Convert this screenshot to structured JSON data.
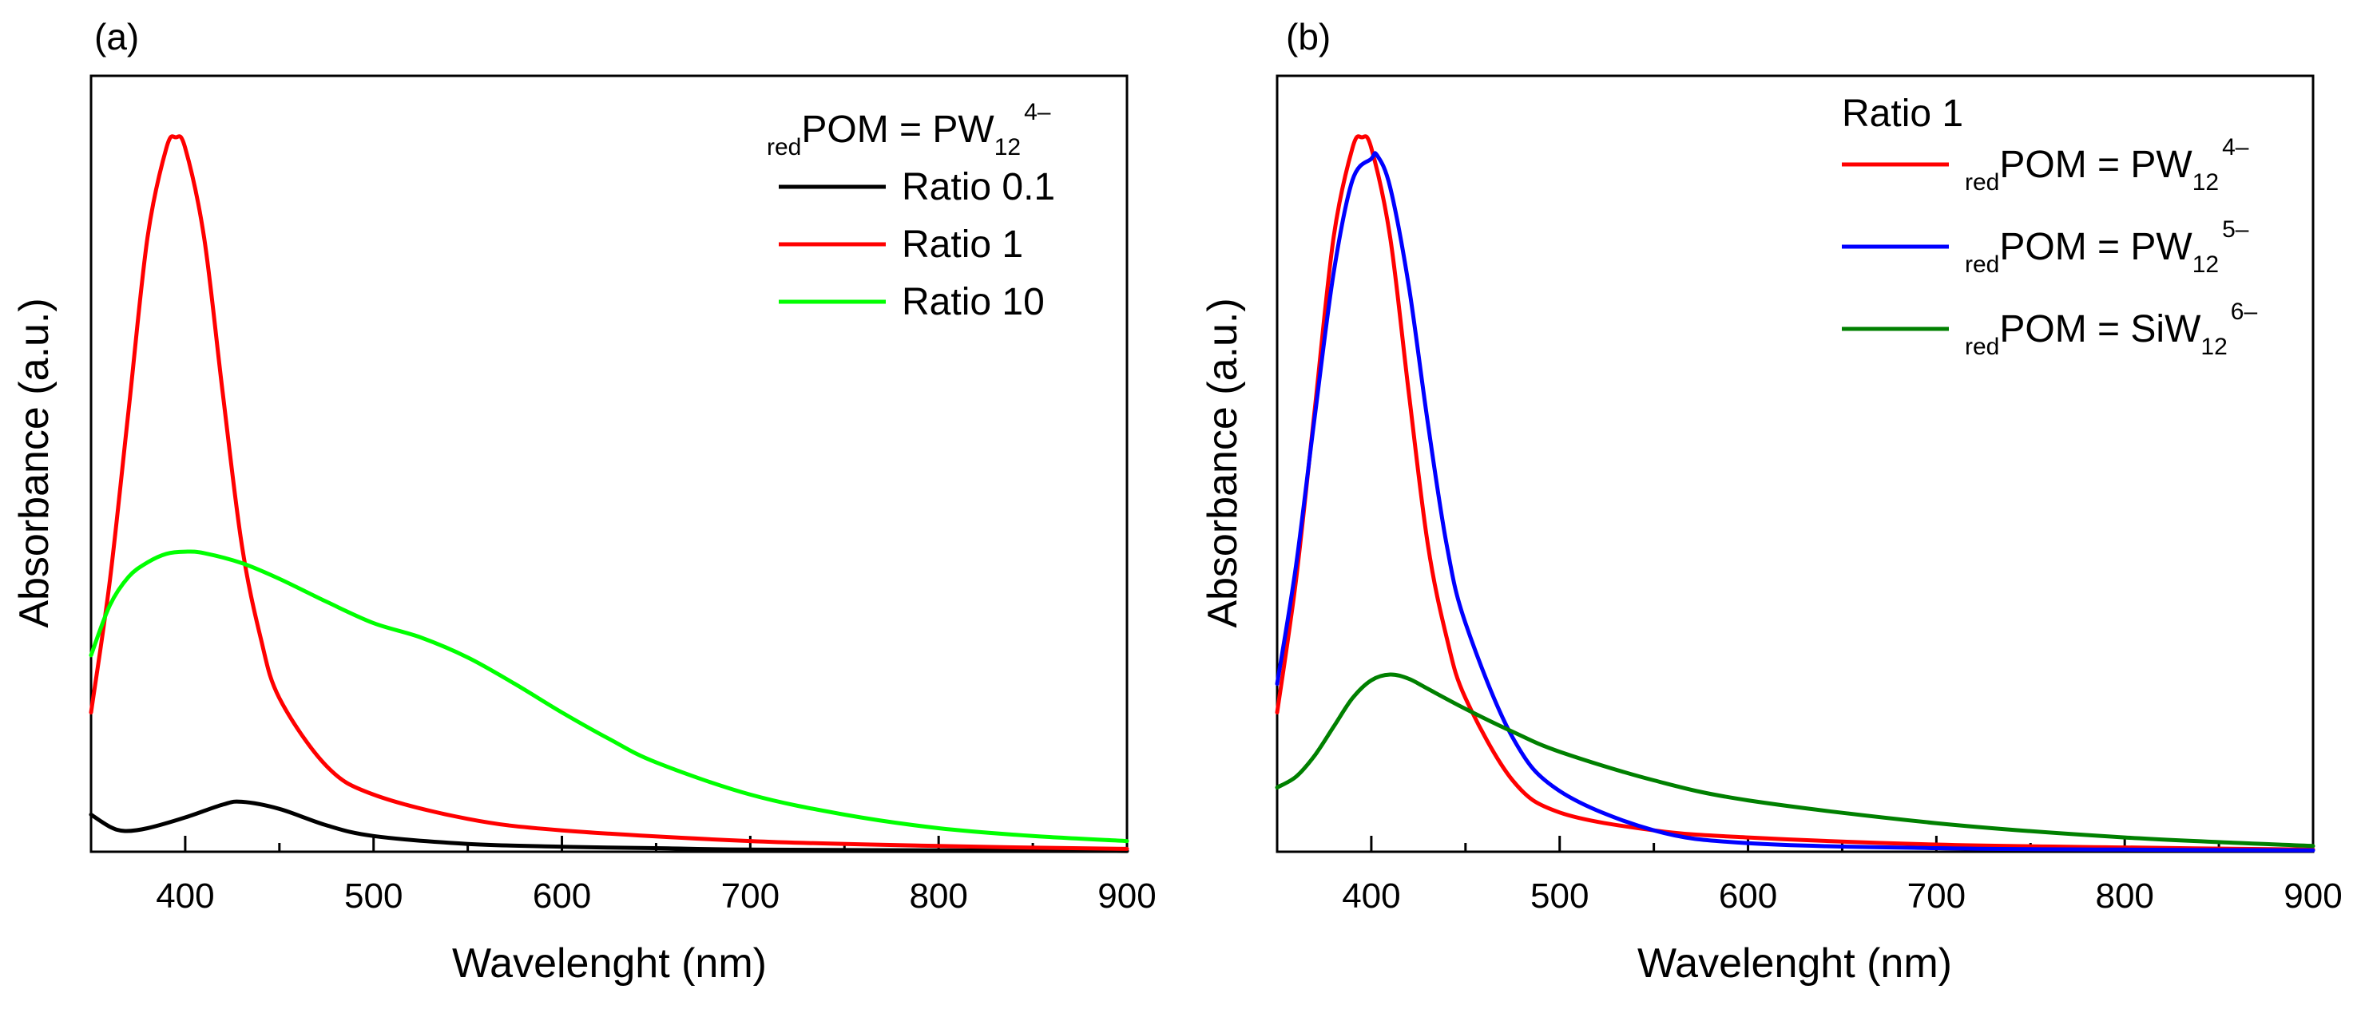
{
  "chart_data": [
    {
      "panel": "(a)",
      "type": "line",
      "xlabel": "Wavelenght (nm)",
      "ylabel": "Absorbance (a.u.)",
      "xlim": [
        350,
        900
      ],
      "ylim": [
        0,
        1.0
      ],
      "xticks": [
        "400",
        "500",
        "600",
        "700",
        "800",
        "900"
      ],
      "legend": {
        "title": {
          "pre": "red",
          "main": "POM = PW",
          "sub": "12",
          "sup": "4–"
        },
        "position": "top-right"
      },
      "series": [
        {
          "name": "Ratio 0.1",
          "color": "#000000",
          "x": [
            350,
            360,
            368,
            380,
            400,
            420,
            430,
            450,
            475,
            500,
            550,
            600,
            650,
            700,
            800,
            900
          ],
          "y": [
            0.052,
            0.035,
            0.029,
            0.033,
            0.048,
            0.066,
            0.07,
            0.06,
            0.037,
            0.022,
            0.011,
            0.007,
            0.005,
            0.003,
            0.002,
            0.001
          ]
        },
        {
          "name": "Ratio 1",
          "color": "#ff0000",
          "x": [
            350,
            360,
            370,
            380,
            390,
            395,
            400,
            410,
            420,
            430,
            440,
            450,
            475,
            500,
            550,
            600,
            700,
            800,
            900
          ],
          "y": [
            0.195,
            0.38,
            0.62,
            0.86,
            0.985,
            1.0,
            0.985,
            0.86,
            0.64,
            0.43,
            0.3,
            0.215,
            0.12,
            0.08,
            0.046,
            0.03,
            0.015,
            0.008,
            0.004
          ]
        },
        {
          "name": "Ratio 10",
          "color": "#00ff00",
          "x": [
            350,
            360,
            370,
            380,
            390,
            400,
            410,
            430,
            450,
            475,
            500,
            525,
            550,
            575,
            600,
            625,
            650,
            700,
            750,
            800,
            850,
            900
          ],
          "y": [
            0.275,
            0.345,
            0.385,
            0.405,
            0.417,
            0.42,
            0.418,
            0.404,
            0.382,
            0.35,
            0.32,
            0.3,
            0.272,
            0.235,
            0.195,
            0.158,
            0.125,
            0.08,
            0.052,
            0.033,
            0.022,
            0.015
          ]
        }
      ]
    },
    {
      "panel": "(b)",
      "type": "line",
      "xlabel": "Wavelenght (nm)",
      "ylabel": "Absorbance (a.u.)",
      "xlim": [
        350,
        900
      ],
      "ylim": [
        0,
        1.0
      ],
      "xticks": [
        "400",
        "500",
        "600",
        "700",
        "800",
        "900"
      ],
      "legend": {
        "title": "Ratio 1",
        "position": "top-right"
      },
      "series": [
        {
          "name": {
            "pre": "red",
            "main": "POM = PW",
            "sub": "12",
            "sup": "4–"
          },
          "color": "#ff0000",
          "x": [
            350,
            360,
            370,
            380,
            390,
            395,
            400,
            410,
            420,
            430,
            440,
            450,
            475,
            500,
            550,
            600,
            700,
            800,
            900
          ],
          "y": [
            0.195,
            0.38,
            0.62,
            0.86,
            0.985,
            1.0,
            0.985,
            0.86,
            0.64,
            0.43,
            0.3,
            0.215,
            0.1,
            0.055,
            0.03,
            0.02,
            0.01,
            0.006,
            0.003
          ]
        },
        {
          "name": {
            "pre": "red",
            "main": "POM = PW",
            "sub": "12",
            "sup": "5–"
          },
          "color": "#0000ff",
          "x": [
            350,
            360,
            370,
            380,
            390,
            400,
            403,
            410,
            420,
            430,
            440,
            450,
            475,
            500,
            550,
            600,
            700,
            800,
            900
          ],
          "y": [
            0.235,
            0.4,
            0.61,
            0.81,
            0.94,
            0.97,
            0.975,
            0.93,
            0.79,
            0.6,
            0.43,
            0.32,
            0.16,
            0.085,
            0.03,
            0.012,
            0.005,
            0.003,
            0.002
          ]
        },
        {
          "name": {
            "pre": "red",
            "main": "POM = SiW",
            "sub": "12",
            "sup": "6–"
          },
          "color": "#008000",
          "x": [
            350,
            360,
            370,
            380,
            390,
            400,
            410,
            420,
            430,
            450,
            475,
            500,
            550,
            600,
            700,
            800,
            900
          ],
          "y": [
            0.09,
            0.105,
            0.135,
            0.175,
            0.215,
            0.24,
            0.248,
            0.242,
            0.228,
            0.2,
            0.168,
            0.14,
            0.1,
            0.072,
            0.04,
            0.02,
            0.008
          ]
        }
      ]
    }
  ]
}
